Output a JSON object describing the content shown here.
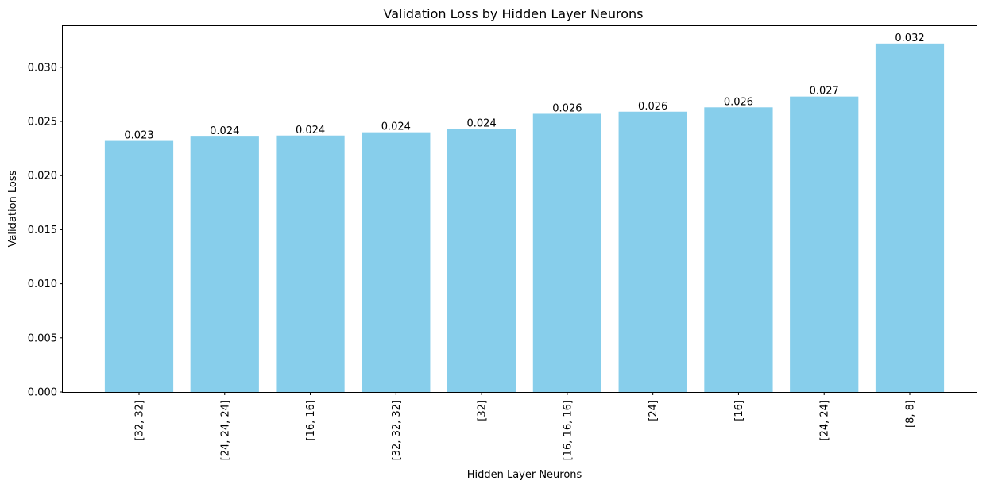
{
  "chart_data": {
    "type": "bar",
    "title": "Validation Loss by Hidden Layer Neurons",
    "xlabel": "Hidden Layer Neurons",
    "ylabel": "Validation Loss",
    "categories": [
      "[32, 32]",
      "[24, 24, 24]",
      "[16, 16]",
      "[32, 32, 32]",
      "[32]",
      "[16, 16, 16]",
      "[24]",
      "[16]",
      "[24, 24]",
      "[8, 8]"
    ],
    "values": [
      0.0232,
      0.0236,
      0.0237,
      0.024,
      0.0243,
      0.0257,
      0.0259,
      0.0263,
      0.0273,
      0.0322
    ],
    "value_labels": [
      "0.023",
      "0.024",
      "0.024",
      "0.024",
      "0.024",
      "0.026",
      "0.026",
      "0.026",
      "0.027",
      "0.032"
    ],
    "yticks": [
      0.0,
      0.005,
      0.01,
      0.015,
      0.02,
      0.025,
      0.03
    ],
    "ytick_labels": [
      "0.000",
      "0.005",
      "0.010",
      "0.015",
      "0.020",
      "0.025",
      "0.030"
    ],
    "ylim": [
      0,
      0.0338
    ],
    "bar_color": "#87ceeb",
    "grid": false,
    "legend": "none"
  }
}
